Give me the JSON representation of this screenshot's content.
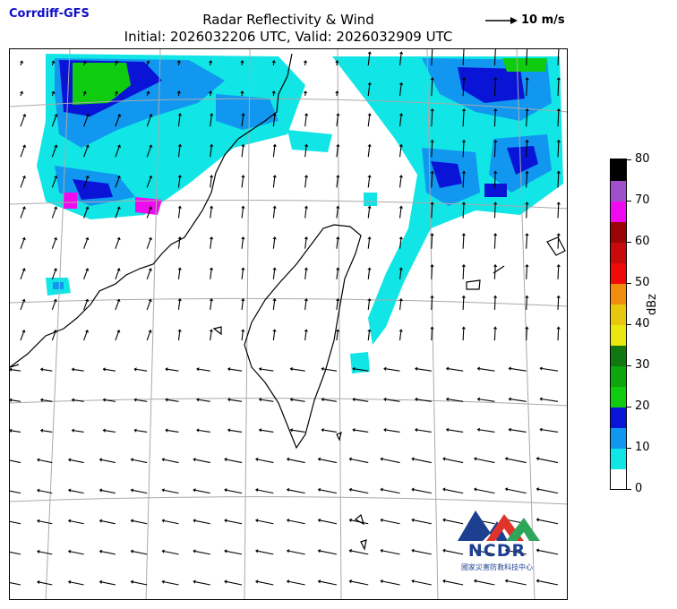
{
  "header": {
    "brand": "Corrdiff-GFS",
    "title_line1": "Radar Reflectivity & Wind",
    "title_line2": "Initial: 2026032206 UTC, Valid: 2026032909 UTC",
    "wind_reference_label": "10 m/s"
  },
  "colorbar": {
    "unit": "dBz",
    "min": 0,
    "max": 80,
    "tick_labels": [
      "0",
      "10",
      "20",
      "30",
      "40",
      "50",
      "60",
      "70",
      "80"
    ],
    "bins": [
      {
        "from": 0,
        "to": 5,
        "color": "#ffffff"
      },
      {
        "from": 5,
        "to": 10,
        "color": "#11e5e5"
      },
      {
        "from": 10,
        "to": 15,
        "color": "#1197f0"
      },
      {
        "from": 15,
        "to": 20,
        "color": "#0a14d6"
      },
      {
        "from": 20,
        "to": 25,
        "color": "#10cc10"
      },
      {
        "from": 25,
        "to": 30,
        "color": "#0ea60e"
      },
      {
        "from": 30,
        "to": 35,
        "color": "#117711"
      },
      {
        "from": 35,
        "to": 40,
        "color": "#e8e80e"
      },
      {
        "from": 40,
        "to": 45,
        "color": "#e8c80e"
      },
      {
        "from": 45,
        "to": 50,
        "color": "#f08c0e"
      },
      {
        "from": 50,
        "to": 55,
        "color": "#f00a0a"
      },
      {
        "from": 55,
        "to": 60,
        "color": "#c80a0a"
      },
      {
        "from": 60,
        "to": 65,
        "color": "#9a0606"
      },
      {
        "from": 65,
        "to": 70,
        "color": "#f00af0"
      },
      {
        "from": 70,
        "to": 75,
        "color": "#a050c8"
      },
      {
        "from": 75,
        "to": 80,
        "color": "#000000"
      }
    ]
  },
  "logo": {
    "text": "NCDR",
    "subtext": "國家災害防救科技中心",
    "colors": [
      "#1d3f8f",
      "#e0332a",
      "#2ea65a"
    ]
  }
}
